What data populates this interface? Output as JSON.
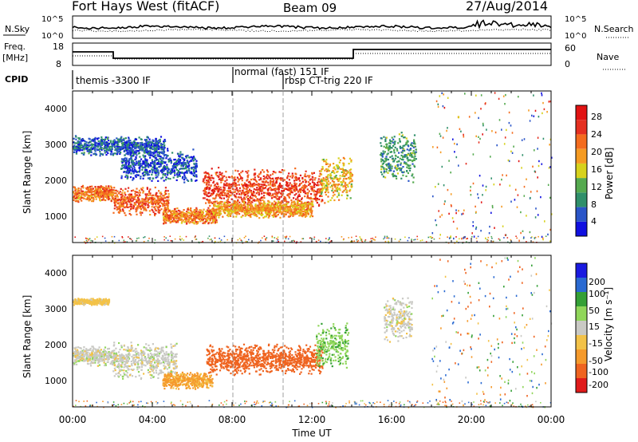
{
  "header": {
    "station": "Fort Hays West (fitACF)",
    "beam": "Beam 09",
    "date": "27/Aug/2014"
  },
  "noise_panel": {
    "left_label": "N.Sky",
    "right_label": "N.Search",
    "ticks": [
      "10^5",
      "10^0"
    ]
  },
  "freq_panel": {
    "left_label_1": "Freq.",
    "left_label_2": "[MHz]",
    "left_ticks": [
      "18",
      "8"
    ],
    "right_label": "Nave",
    "right_ticks": [
      "60",
      "0"
    ]
  },
  "cpid_panel": {
    "label": "CPID",
    "modes": [
      "themis -3300 IF",
      "normal (fast) 151 IF",
      "rbsp CT-trig 220 IF"
    ]
  },
  "colors": {
    "power": [
      "#1010e0",
      "#2a55c8",
      "#2f8f6a",
      "#55aa4f",
      "#d7d21c",
      "#f59b22",
      "#f46c1e",
      "#e53021",
      "#e11313"
    ],
    "velocity": [
      "#1a1ae0",
      "#2a6ad2",
      "#34a036",
      "#90d65a",
      "#c9c9c4",
      "#f3c248",
      "#f59a2c",
      "#ef6420",
      "#e01b1b"
    ]
  },
  "chart_data": [
    {
      "type": "heatmap",
      "quantity": "power",
      "ylabel": "Slant Range [km]",
      "yticks": [
        "4000",
        "3000",
        "2000",
        "1000"
      ],
      "ylim": [
        180,
        4500
      ],
      "xlim": [
        0,
        24
      ],
      "colorbar_label": "Power [dB]",
      "colorbar_ticks": [
        "28",
        "24",
        "20",
        "16",
        "12",
        "8",
        "4"
      ],
      "colorbar_range": [
        0,
        32
      ],
      "echo_regions": [
        {
          "t": [
            0.0,
            2.0
          ],
          "range_km": [
            1350,
            1850
          ],
          "level": 22
        },
        {
          "t": [
            2.0,
            4.8
          ],
          "range_km": [
            950,
            1800
          ],
          "level": 24
        },
        {
          "t": [
            0.0,
            4.6
          ],
          "range_km": [
            2650,
            3250
          ],
          "level": 6
        },
        {
          "t": [
            2.4,
            6.2
          ],
          "range_km": [
            1900,
            2900
          ],
          "level": 5
        },
        {
          "t": [
            4.5,
            7.2
          ],
          "range_km": [
            700,
            1200
          ],
          "level": 22
        },
        {
          "t": [
            6.5,
            12.5
          ],
          "range_km": [
            1100,
            2350
          ],
          "level": 26
        },
        {
          "t": [
            7.0,
            12.0
          ],
          "range_km": [
            900,
            1400
          ],
          "level": 20
        },
        {
          "t": [
            12.4,
            14.0
          ],
          "range_km": [
            1300,
            2700
          ],
          "level": 18
        },
        {
          "t": [
            15.4,
            17.2
          ],
          "range_km": [
            1900,
            3400
          ],
          "level": 10
        }
      ]
    },
    {
      "type": "heatmap",
      "quantity": "velocity",
      "ylabel": "Slant Range [km]",
      "yticks": [
        "4000",
        "3000",
        "2000",
        "1000"
      ],
      "ylim": [
        180,
        4500
      ],
      "xlim": [
        0,
        24
      ],
      "xlabel": "Time UT",
      "xticks": [
        "00:00",
        "04:00",
        "08:00",
        "12:00",
        "16:00",
        "20:00",
        "00:00"
      ],
      "colorbar_label": "Velocity [m s⁻¹]",
      "colorbar_ticks": [
        "200",
        "100",
        "50",
        "15",
        "-15",
        "-50",
        "-100",
        "-200"
      ],
      "echo_regions": [
        {
          "t": [
            0.0,
            2.2
          ],
          "range_km": [
            1350,
            1950
          ],
          "velocity": 0
        },
        {
          "t": [
            2.0,
            5.2
          ],
          "range_km": [
            950,
            2100
          ],
          "velocity": 0
        },
        {
          "t": [
            0.0,
            1.8
          ],
          "range_km": [
            3100,
            3300
          ],
          "velocity": -30
        },
        {
          "t": [
            4.5,
            7.0
          ],
          "range_km": [
            700,
            1200
          ],
          "velocity": -60
        },
        {
          "t": [
            6.7,
            12.5
          ],
          "range_km": [
            1100,
            2000
          ],
          "velocity": -180
        },
        {
          "t": [
            12.2,
            13.8
          ],
          "range_km": [
            1300,
            2600
          ],
          "velocity": 40
        },
        {
          "t": [
            15.6,
            17.0
          ],
          "range_km": [
            2000,
            3400
          ],
          "velocity": 0
        }
      ]
    }
  ]
}
